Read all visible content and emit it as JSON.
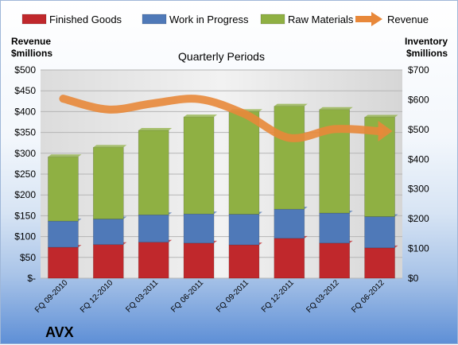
{
  "chart_data": {
    "type": "bar",
    "stacked": true,
    "company": "AVX",
    "plot_title": "Quarterly Periods",
    "left_axis_title": [
      "Revenue",
      "$millions"
    ],
    "right_axis_title": [
      "Inventory",
      "$millions"
    ],
    "categories": [
      "FQ 09-2010",
      "FQ 12-2010",
      "FQ 03-2011",
      "FQ 06-2011",
      "FQ 09-2011",
      "FQ 12-2011",
      "FQ 03-2012",
      "FQ 06-2012"
    ],
    "left_ylim": [
      0,
      500
    ],
    "left_ticks": [
      "$-",
      "$50",
      "$100",
      "$150",
      "$200",
      "$250",
      "$300",
      "$350",
      "$400",
      "$450",
      "$500"
    ],
    "right_ylim": [
      0,
      700
    ],
    "right_ticks": [
      "$0",
      "$100",
      "$200",
      "$300",
      "$400",
      "$500",
      "$600",
      "$700"
    ],
    "series": [
      {
        "name": "Finished Goods",
        "axis": "right",
        "color": "#c0282c",
        "values": [
          104,
          113,
          121,
          118,
          112,
          134,
          118,
          102
        ]
      },
      {
        "name": "Work in Progress",
        "axis": "right",
        "color": "#4f79b8",
        "values": [
          88,
          86,
          92,
          98,
          103,
          98,
          101,
          105
        ]
      },
      {
        "name": "Raw Materials",
        "axis": "right",
        "color": "#8fb043",
        "values": [
          216,
          241,
          284,
          326,
          345,
          346,
          348,
          334
        ]
      },
      {
        "name": "Revenue",
        "axis": "left",
        "color": "#e8883a",
        "values": [
          431,
          405,
          420,
          430,
          395,
          337,
          358,
          353
        ]
      }
    ],
    "grid": true,
    "legend_position": "top"
  }
}
